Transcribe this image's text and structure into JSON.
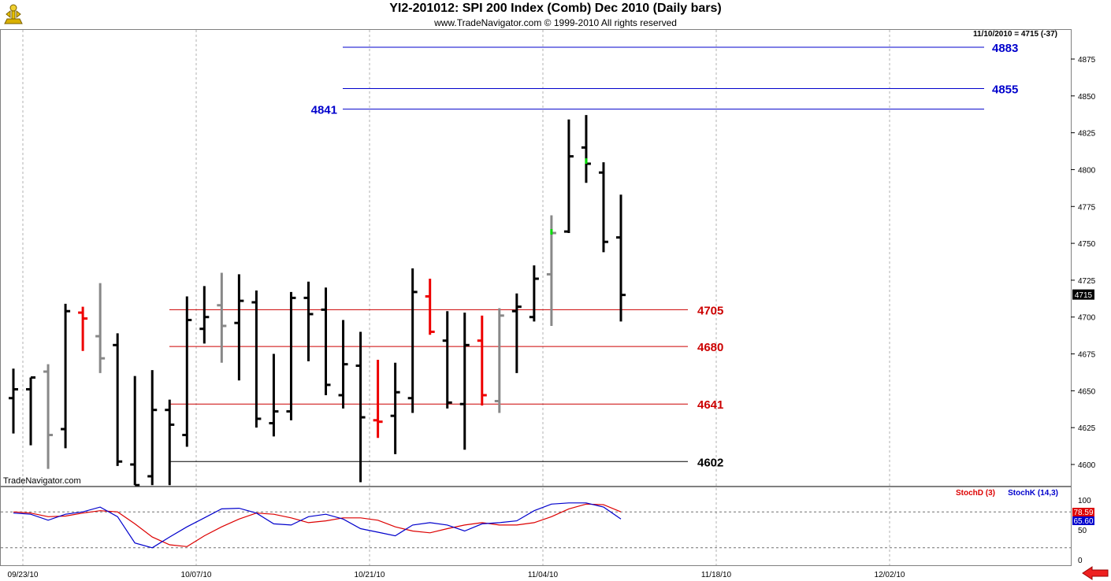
{
  "header": {
    "title": "YI2-201012:  SPI 200 Index (Comb) Dec 2010  (Daily bars)",
    "subtitle": "www.TradeNavigator.com © 1999-2010 All rights reserved",
    "last_info": "11/10/2010 = 4715 (-37)",
    "watermark": "TradeNavigator.com",
    "logo_icon": "trade-navigator-logo-icon"
  },
  "colors": {
    "bar_normal": "#000000",
    "bar_gray": "#888888",
    "bar_red": "#ee0000",
    "bar_green": "#00dd00",
    "level_blue": "#0000cc",
    "level_red": "#cc0000",
    "level_black": "#000000",
    "stoch_d": "#dd0000",
    "stoch_k": "#0000cc"
  },
  "chart_data": [
    {
      "type": "ohlc",
      "title": "YI2-201012:  SPI 200 Index (Comb) Dec 2010  (Daily bars)",
      "ylim": [
        4585,
        4890
      ],
      "y_ticks": [
        4600,
        4625,
        4650,
        4675,
        4700,
        4725,
        4750,
        4775,
        4800,
        4825,
        4850,
        4875
      ],
      "x_ticks": [
        "09/23/10",
        "10/07/10",
        "10/21/10",
        "11/04/10",
        "11/18/10",
        "12/02/10"
      ],
      "last_price_label": "4715",
      "bars": [
        {
          "o": 4645,
          "h": 4665,
          "l": 4621,
          "c": 4651,
          "color": "normal"
        },
        {
          "o": 4651,
          "h": 4659,
          "l": 4613,
          "c": 4659,
          "color": "normal"
        },
        {
          "o": 4663,
          "h": 4668,
          "l": 4597,
          "c": 4620,
          "color": "gray"
        },
        {
          "o": 4624,
          "h": 4709,
          "l": 4611,
          "c": 4704,
          "color": "normal"
        },
        {
          "o": 4703,
          "h": 4707,
          "l": 4677,
          "c": 4699,
          "color": "red"
        },
        {
          "o": 4687,
          "h": 4723,
          "l": 4662,
          "c": 4672,
          "color": "gray"
        },
        {
          "o": 4681,
          "h": 4689,
          "l": 4599,
          "c": 4602,
          "color": "normal"
        },
        {
          "o": 4600,
          "h": 4660,
          "l": 4586,
          "c": 4586,
          "color": "normal"
        },
        {
          "o": 4592,
          "h": 4664,
          "l": 4586,
          "c": 4637,
          "color": "normal"
        },
        {
          "o": 4637,
          "h": 4644,
          "l": 4586,
          "c": 4627,
          "color": "normal"
        },
        {
          "o": 4620,
          "h": 4714,
          "l": 4612,
          "c": 4698,
          "color": "normal"
        },
        {
          "o": 4692,
          "h": 4721,
          "l": 4682,
          "c": 4700,
          "color": "normal"
        },
        {
          "o": 4708,
          "h": 4730,
          "l": 4669,
          "c": 4694,
          "color": "gray"
        },
        {
          "o": 4696,
          "h": 4729,
          "l": 4657,
          "c": 4711,
          "color": "normal"
        },
        {
          "o": 4710,
          "h": 4718,
          "l": 4625,
          "c": 4631,
          "color": "normal"
        },
        {
          "o": 4628,
          "h": 4675,
          "l": 4619,
          "c": 4636,
          "color": "normal"
        },
        {
          "o": 4636,
          "h": 4717,
          "l": 4630,
          "c": 4713,
          "color": "normal"
        },
        {
          "o": 4713,
          "h": 4724,
          "l": 4670,
          "c": 4702,
          "color": "normal"
        },
        {
          "o": 4705,
          "h": 4720,
          "l": 4647,
          "c": 4654,
          "color": "normal"
        },
        {
          "o": 4647,
          "h": 4698,
          "l": 4638,
          "c": 4668,
          "color": "normal"
        },
        {
          "o": 4667,
          "h": 4690,
          "l": 4588,
          "c": 4632,
          "color": "normal"
        },
        {
          "o": 4630,
          "h": 4671,
          "l": 4618,
          "c": 4629,
          "color": "red"
        },
        {
          "o": 4633,
          "h": 4669,
          "l": 4607,
          "c": 4649,
          "color": "normal"
        },
        {
          "o": 4645,
          "h": 4733,
          "l": 4635,
          "c": 4717,
          "color": "normal"
        },
        {
          "o": 4714,
          "h": 4726,
          "l": 4688,
          "c": 4690,
          "color": "red"
        },
        {
          "o": 4684,
          "h": 4704,
          "l": 4638,
          "c": 4642,
          "color": "normal"
        },
        {
          "o": 4641,
          "h": 4703,
          "l": 4610,
          "c": 4681,
          "color": "normal"
        },
        {
          "o": 4684,
          "h": 4701,
          "l": 4640,
          "c": 4647,
          "color": "red"
        },
        {
          "o": 4643,
          "h": 4706,
          "l": 4635,
          "c": 4701,
          "color": "gray"
        },
        {
          "o": 4704,
          "h": 4716,
          "l": 4662,
          "c": 4707,
          "color": "normal"
        },
        {
          "o": 4700,
          "h": 4735,
          "l": 4697,
          "c": 4726,
          "color": "normal"
        },
        {
          "o": 4729,
          "h": 4769,
          "l": 4694,
          "c": 4757,
          "color": "gray"
        },
        {
          "o": 4758,
          "h": 4834,
          "l": 4757,
          "c": 4809,
          "color": "normal"
        },
        {
          "o": 4815,
          "h": 4837,
          "l": 4791,
          "c": 4804,
          "color": "normal"
        },
        {
          "o": 4798,
          "h": 4805,
          "l": 4744,
          "c": 4751,
          "color": "normal"
        },
        {
          "o": 4754,
          "h": 4783,
          "l": 4697,
          "c": 4715,
          "color": "normal"
        }
      ],
      "green_marks": [
        {
          "bar": 31,
          "value": 4757
        },
        {
          "bar": 33,
          "value": 4805
        }
      ],
      "levels": [
        {
          "value": 4883,
          "label": "4883",
          "color": "blue",
          "label_side": "right"
        },
        {
          "value": 4855,
          "label": "4855",
          "color": "blue",
          "label_side": "right"
        },
        {
          "value": 4841,
          "label": "4841",
          "color": "blue",
          "label_side": "left"
        },
        {
          "value": 4705,
          "label": "4705",
          "color": "red",
          "label_side": "right"
        },
        {
          "value": 4680,
          "label": "4680",
          "color": "red",
          "label_side": "right"
        },
        {
          "value": 4641,
          "label": "4641",
          "color": "red",
          "label_side": "right"
        },
        {
          "value": 4602,
          "label": "4602",
          "color": "black",
          "label_side": "right"
        }
      ]
    },
    {
      "type": "line",
      "title": "",
      "ylim": [
        0,
        100
      ],
      "y_ticks": [
        0,
        50,
        100
      ],
      "reference_lines": [
        20,
        80
      ],
      "series": [
        {
          "name": "StochD (3)",
          "color": "red",
          "values": [
            80,
            78,
            72,
            73,
            78,
            82,
            80,
            60,
            38,
            25,
            22,
            40,
            55,
            68,
            78,
            76,
            70,
            62,
            65,
            70,
            70,
            66,
            55,
            48,
            45,
            52,
            58,
            62,
            58,
            58,
            62,
            72,
            85,
            93,
            92,
            80
          ]
        },
        {
          "name": "StochK (14,3)",
          "color": "blue",
          "values": [
            78,
            76,
            66,
            76,
            80,
            88,
            72,
            28,
            20,
            38,
            55,
            70,
            85,
            86,
            78,
            60,
            58,
            72,
            76,
            68,
            52,
            46,
            40,
            58,
            62,
            58,
            48,
            60,
            62,
            65,
            82,
            93,
            95,
            95,
            88,
            68
          ]
        }
      ],
      "last_values": [
        "78.59",
        "65.60"
      ]
    }
  ]
}
